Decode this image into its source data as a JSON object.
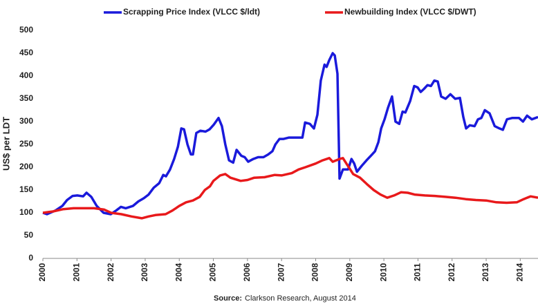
{
  "chart_data": {
    "type": "line",
    "y_label": "US$ per LDT",
    "source_label": "Source:",
    "source_text": "Clarkson Research, August 2014",
    "xlim": [
      2000,
      2014.52
    ],
    "xticks": [
      2000,
      2001,
      2002,
      2003,
      2004,
      2005,
      2006,
      2007,
      2008,
      2009,
      2010,
      2011,
      2012,
      2013,
      2014
    ],
    "ylim": [
      0,
      500
    ],
    "yticks": [
      0,
      50,
      100,
      150,
      200,
      250,
      300,
      350,
      400,
      450,
      500
    ],
    "grid": false,
    "legend": "top",
    "series": [
      {
        "name": "Scrapping Price Index (VLCC $/ldt)",
        "color": "#1a1adb",
        "x": [
          2000.0,
          2000.12,
          2000.37,
          2000.57,
          2000.71,
          2000.87,
          2001.01,
          2001.18,
          2001.28,
          2001.42,
          2001.58,
          2001.78,
          2001.99,
          2002.15,
          2002.29,
          2002.43,
          2002.64,
          2002.8,
          2002.96,
          2003.1,
          2003.25,
          2003.41,
          2003.53,
          2003.61,
          2003.73,
          2003.85,
          2003.96,
          2004.06,
          2004.14,
          2004.24,
          2004.34,
          2004.4,
          2004.5,
          2004.62,
          2004.77,
          2004.89,
          2005.01,
          2005.15,
          2005.25,
          2005.35,
          2005.46,
          2005.58,
          2005.68,
          2005.82,
          2005.92,
          2006.02,
          2006.17,
          2006.31,
          2006.47,
          2006.61,
          2006.73,
          2006.82,
          2006.94,
          2007.06,
          2007.22,
          2007.42,
          2007.61,
          2007.69,
          2007.83,
          2007.95,
          2008.05,
          2008.15,
          2008.26,
          2008.32,
          2008.4,
          2008.5,
          2008.56,
          2008.64,
          2008.7,
          2008.8,
          2008.95,
          2009.05,
          2009.13,
          2009.21,
          2009.35,
          2009.49,
          2009.63,
          2009.74,
          2009.84,
          2009.92,
          2010.02,
          2010.12,
          2010.24,
          2010.34,
          2010.45,
          2010.55,
          2010.63,
          2010.77,
          2010.89,
          2010.99,
          2011.08,
          2011.18,
          2011.28,
          2011.38,
          2011.48,
          2011.58,
          2011.68,
          2011.81,
          2011.95,
          2012.09,
          2012.23,
          2012.33,
          2012.41,
          2012.52,
          2012.66,
          2012.76,
          2012.86,
          2012.96,
          2013.1,
          2013.25,
          2013.39,
          2013.49,
          2013.61,
          2013.77,
          2013.96,
          2014.08,
          2014.2,
          2014.34,
          2014.52
        ],
        "values": [
          100,
          97,
          105,
          115,
          128,
          137,
          138,
          136,
          144,
          135,
          115,
          100,
          97,
          105,
          113,
          110,
          115,
          125,
          132,
          140,
          155,
          165,
          183,
          180,
          195,
          218,
          245,
          285,
          283,
          250,
          228,
          228,
          275,
          280,
          278,
          283,
          293,
          308,
          290,
          250,
          215,
          210,
          238,
          225,
          222,
          212,
          218,
          222,
          222,
          228,
          235,
          250,
          262,
          262,
          265,
          265,
          265,
          298,
          295,
          285,
          315,
          390,
          425,
          420,
          435,
          450,
          445,
          405,
          175,
          195,
          195,
          218,
          208,
          190,
          203,
          215,
          226,
          235,
          255,
          285,
          305,
          330,
          355,
          300,
          295,
          322,
          320,
          345,
          378,
          375,
          365,
          372,
          380,
          378,
          390,
          388,
          355,
          350,
          360,
          350,
          352,
          310,
          285,
          292,
          290,
          305,
          308,
          325,
          318,
          290,
          285,
          282,
          305,
          308,
          308,
          300,
          313,
          305,
          310
        ]
      },
      {
        "name": "Newbuilding Index (VLCC $/DWT)",
        "color": "#e8191b",
        "x": [
          2000.0,
          2000.3,
          2000.6,
          2000.9,
          2001.2,
          2001.5,
          2001.8,
          2002.0,
          2002.3,
          2002.6,
          2002.9,
          2003.1,
          2003.3,
          2003.6,
          2003.8,
          2004.0,
          2004.2,
          2004.4,
          2004.6,
          2004.75,
          2004.9,
          2005.0,
          2005.2,
          2005.35,
          2005.5,
          2005.8,
          2006.0,
          2006.2,
          2006.5,
          2006.8,
          2007.0,
          2007.3,
          2007.5,
          2007.7,
          2008.0,
          2008.2,
          2008.4,
          2008.5,
          2008.7,
          2008.8,
          2008.9,
          2009.1,
          2009.3,
          2009.5,
          2009.7,
          2009.9,
          2010.1,
          2010.3,
          2010.5,
          2010.7,
          2010.9,
          2011.2,
          2011.5,
          2011.8,
          2012.1,
          2012.4,
          2012.7,
          2013.0,
          2013.3,
          2013.6,
          2013.9,
          2014.1,
          2014.3,
          2014.52
        ],
        "values": [
          100,
          103,
          108,
          110,
          110,
          110,
          107,
          100,
          97,
          92,
          88,
          92,
          95,
          97,
          105,
          115,
          123,
          127,
          135,
          150,
          158,
          170,
          182,
          185,
          177,
          170,
          172,
          177,
          178,
          183,
          182,
          187,
          195,
          200,
          208,
          215,
          220,
          212,
          218,
          220,
          208,
          185,
          177,
          163,
          150,
          140,
          133,
          138,
          145,
          144,
          140,
          138,
          137,
          135,
          133,
          130,
          128,
          127,
          123,
          122,
          123,
          130,
          136,
          133
        ]
      }
    ]
  }
}
